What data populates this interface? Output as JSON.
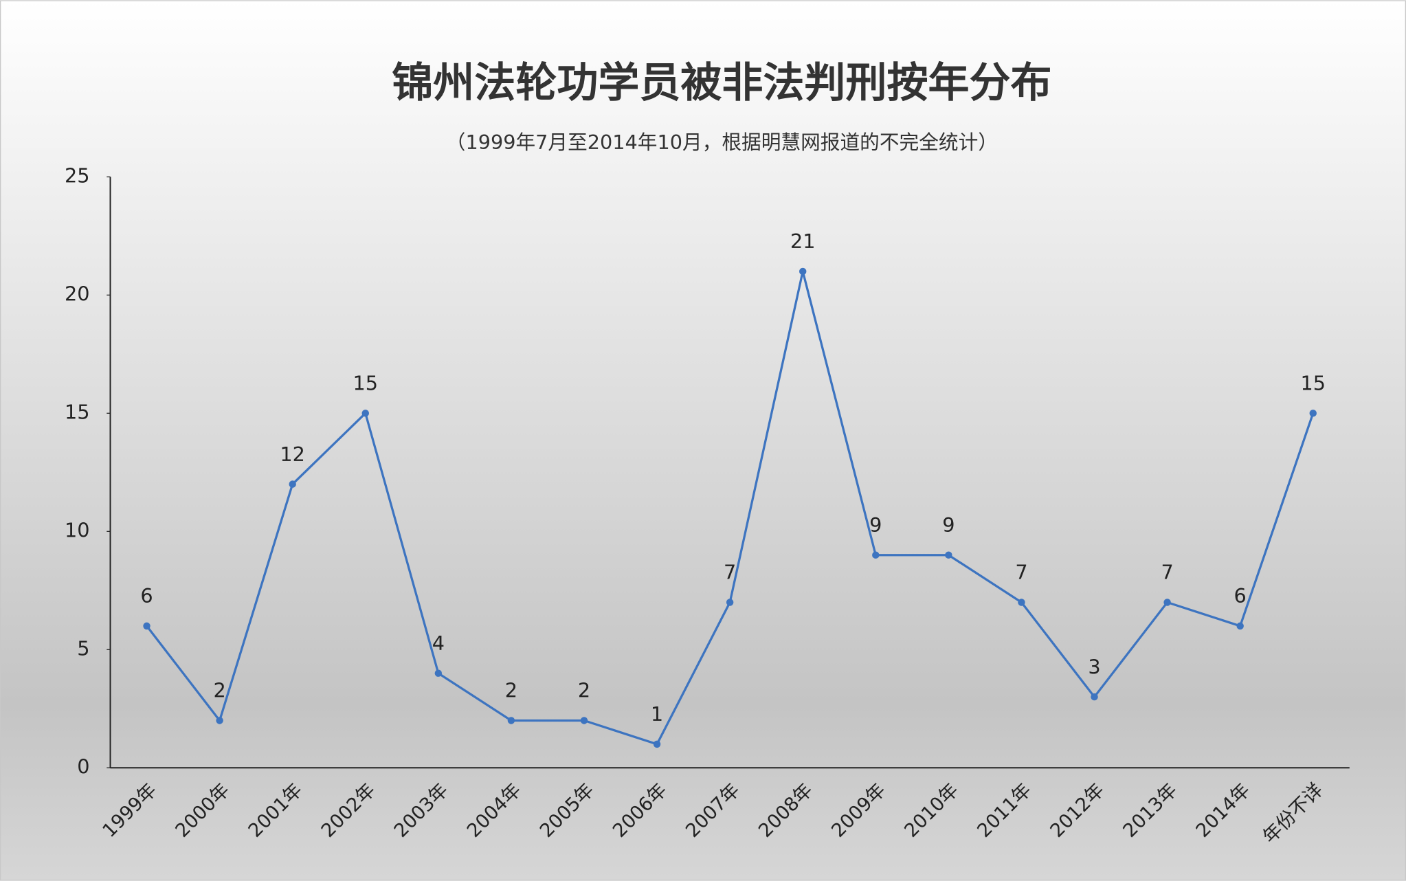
{
  "chart_data": {
    "type": "line",
    "title": "锦州法轮功学员被非法判刑按年分布",
    "subtitle": "（1999年7月至2014年10月，根据明慧网报道的不完全统计）",
    "categories": [
      "1999年",
      "2000年",
      "2001年",
      "2002年",
      "2003年",
      "2004年",
      "2005年",
      "2006年",
      "2007年",
      "2008年",
      "2009年",
      "2010年",
      "2011年",
      "2012年",
      "2013年",
      "2014年",
      "年份不详"
    ],
    "values": [
      6,
      2,
      12,
      15,
      4,
      2,
      2,
      1,
      7,
      21,
      9,
      9,
      7,
      3,
      7,
      6,
      15
    ],
    "color": "#3d74c0",
    "ylim": [
      0,
      25
    ],
    "yticks": [
      0,
      5,
      10,
      15,
      20,
      25
    ],
    "grid": false,
    "data_labels": true
  }
}
